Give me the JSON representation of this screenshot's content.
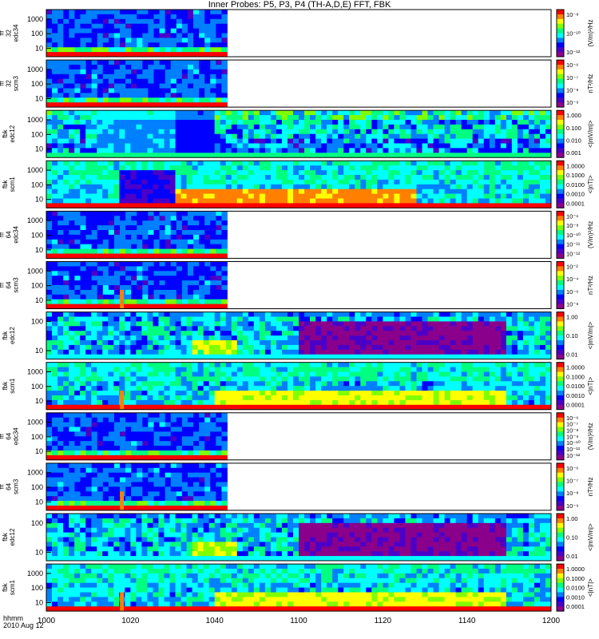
{
  "chart_data": {
    "type": "heatmap",
    "title": "Inner Probes: P5, P3, P4 (TH-A,D,E) FFT, FBK",
    "x_axis": {
      "label_lines": [
        "hhmm",
        "2010 Aug 12"
      ],
      "tick_labels": [
        "1000",
        "1020",
        "1040",
        "1100",
        "1120",
        "1140",
        "1200"
      ],
      "range_minutes": [
        0,
        120
      ]
    },
    "panels": [
      {
        "ylabel": [
          "tha",
          "fff",
          "32",
          "edc34"
        ],
        "kind": "fff",
        "data_end_minute": 43,
        "yticks": [
          "1000",
          "100",
          "10"
        ],
        "cbar_label": "(V/m)²/Hz",
        "cbar_ticks": [
          "10⁻⁸",
          "10⁻¹⁰",
          "10⁻¹²"
        ]
      },
      {
        "ylabel": [
          "tha",
          "fff",
          "32",
          "scm3"
        ],
        "kind": "fff",
        "data_end_minute": 43,
        "yticks": [
          "1000",
          "100",
          "10"
        ],
        "cbar_label": "nT²/Hz",
        "cbar_ticks": [
          "10⁻⁶",
          "10⁻⁷",
          "10⁻⁸",
          "10⁻⁹"
        ]
      },
      {
        "ylabel": [
          "tha",
          "fbk",
          "edc12"
        ],
        "kind": "fbk_e",
        "data_end_minute": 120,
        "yticks": [
          "1000",
          "100",
          "10"
        ],
        "cbar_label": "<|mV/m|>",
        "cbar_ticks": [
          "1.000",
          "0.100",
          "0.010",
          "0.001"
        ]
      },
      {
        "ylabel": [
          "tha",
          "fbk",
          "scm1"
        ],
        "kind": "fbk_b",
        "data_end_minute": 120,
        "yticks": [
          "1000",
          "100",
          "10"
        ],
        "cbar_label": "<|nT|>",
        "cbar_ticks": [
          "1.0000",
          "0.1000",
          "0.0100",
          "0.0010",
          "0.0001"
        ]
      },
      {
        "ylabel": [
          "thd",
          "fff",
          "64",
          "edc34"
        ],
        "kind": "fff_sparse",
        "data_end_minute": 43,
        "yticks": [
          "1000",
          "100",
          "10"
        ],
        "cbar_label": "(V/m)²/Hz",
        "cbar_ticks": [
          "10⁻⁶",
          "10⁻⁸",
          "10⁻¹⁰",
          "10⁻¹¹",
          "10⁻¹²"
        ]
      },
      {
        "ylabel": [
          "thd",
          "fff",
          "64",
          "scm3"
        ],
        "kind": "fff_sparse",
        "data_end_minute": 43,
        "spike_minute": 17.5,
        "yticks": [
          "1000",
          "100",
          "10"
        ],
        "cbar_label": "nT²/Hz",
        "cbar_ticks": [
          "10⁻²",
          "10⁻⁴",
          "10⁻⁶",
          "10⁻⁸"
        ]
      },
      {
        "ylabel": [
          "thd",
          "fbk",
          "edc12"
        ],
        "kind": "fbk_e2",
        "data_end_minute": 120,
        "yticks": [
          "100",
          "10"
        ],
        "cbar_label": "<|mV/m|>",
        "cbar_ticks": [
          "1.00",
          "0.10",
          "0.01"
        ]
      },
      {
        "ylabel": [
          "thd",
          "fbk",
          "scm1"
        ],
        "kind": "fbk_b2",
        "data_end_minute": 120,
        "spike_minute": 17.5,
        "yticks": [
          "1000",
          "100",
          "10"
        ],
        "cbar_label": "<|nT|>",
        "cbar_ticks": [
          "1.0000",
          "0.1000",
          "0.0100",
          "0.0010",
          "0.0001"
        ]
      },
      {
        "ylabel": [
          "the",
          "fff",
          "64",
          "edc34"
        ],
        "kind": "fff_sparse",
        "data_end_minute": 43,
        "yticks": [
          "1000",
          "100",
          "10"
        ],
        "cbar_label": "(V/m)²/Hz",
        "cbar_ticks": [
          "10⁻⁶",
          "10⁻⁷",
          "10⁻⁸",
          "10⁻⁹",
          "10⁻¹⁰",
          "10⁻¹¹",
          "10⁻¹²"
        ]
      },
      {
        "ylabel": [
          "the",
          "fff",
          "64",
          "scm3"
        ],
        "kind": "fff_sparse",
        "data_end_minute": 43,
        "spike_minute": 17.5,
        "yticks": [
          "1000",
          "100",
          "10"
        ],
        "cbar_label": "nT²/Hz",
        "cbar_ticks": [
          "10⁻⁶",
          "10⁻⁷",
          "10⁻⁸",
          "10⁻⁹"
        ]
      },
      {
        "ylabel": [
          "the",
          "fbk",
          "edc12"
        ],
        "kind": "fbk_e2",
        "data_end_minute": 120,
        "yticks": [
          "100",
          "10"
        ],
        "cbar_label": "<|mV/m|>",
        "cbar_ticks": [
          "1.00",
          "0.10",
          "0.01"
        ]
      },
      {
        "ylabel": [
          "the",
          "fbk",
          "scm1"
        ],
        "kind": "fbk_b2",
        "data_end_minute": 120,
        "spike_minute": 17.5,
        "yticks": [
          "1000",
          "100",
          "10"
        ],
        "cbar_label": "<|nT|>",
        "cbar_ticks": [
          "1.0000",
          "0.1000",
          "0.0100",
          "0.0010",
          "0.0001"
        ]
      }
    ],
    "colormap": [
      "#8b008b",
      "#4b00c8",
      "#0000ff",
      "#0080ff",
      "#00ffff",
      "#00ff80",
      "#80ff00",
      "#ffff00",
      "#ff8000",
      "#ff0000"
    ],
    "grid": false,
    "legend": "colorbar-right"
  }
}
